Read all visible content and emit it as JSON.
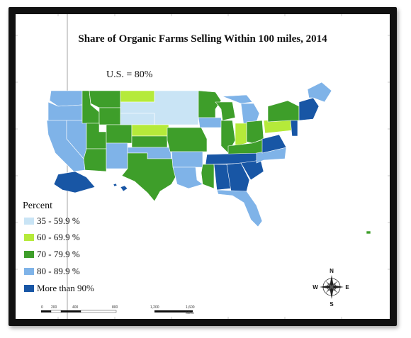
{
  "title": "Share of Organic Farms Selling Within 100 miles, 2014",
  "summary": "U.S. = 80%",
  "legend": {
    "title": "Percent",
    "classes": [
      {
        "label": "35 - 59.9 %",
        "color": "#c9e4f5"
      },
      {
        "label": "60 - 69.9 %",
        "color": "#b5ea3a"
      },
      {
        "label": "70 - 79.9 %",
        "color": "#3e9e2a"
      },
      {
        "label": "80 - 89.9 %",
        "color": "#7fb3e8"
      },
      {
        "label": "More than 90%",
        "color": "#1856a5"
      }
    ]
  },
  "compass": {
    "n": "N",
    "s": "S",
    "e": "E",
    "w": "W"
  },
  "scale_bar": {
    "labels": [
      "0",
      "200",
      "400",
      "800",
      "1,200",
      "1,600"
    ],
    "unit": "Miles"
  }
}
